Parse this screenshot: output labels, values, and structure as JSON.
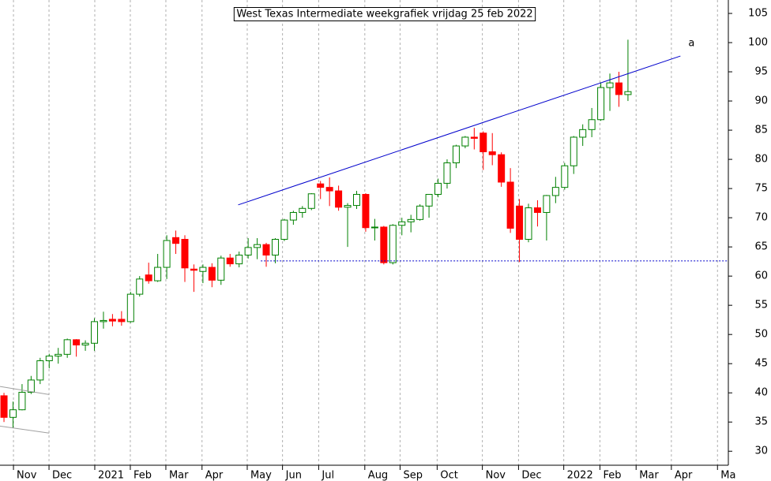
{
  "chart_data": {
    "type": "candlestick",
    "title": "West Texas Intermediate weekgrafiek vrijdag 25 feb 2022",
    "xlim": [
      -0.44,
      80.1
    ],
    "ylim": [
      27.6,
      107.3
    ],
    "yticks": [
      30,
      35,
      40,
      45,
      50,
      55,
      60,
      65,
      70,
      75,
      80,
      85,
      90,
      95,
      100,
      105
    ],
    "xticks": [
      {
        "value": 1.05,
        "label": "Nov"
      },
      {
        "value": 4.98,
        "label": "Dec"
      },
      {
        "value": 10.04,
        "label": "2021"
      },
      {
        "value": 13.97,
        "label": "Feb"
      },
      {
        "value": 17.9,
        "label": "Mar"
      },
      {
        "value": 21.9,
        "label": "Apr"
      },
      {
        "value": 26.9,
        "label": "May"
      },
      {
        "value": 30.8,
        "label": "Jun"
      },
      {
        "value": 34.8,
        "label": "Jul"
      },
      {
        "value": 39.9,
        "label": "Aug"
      },
      {
        "value": 43.8,
        "label": "Sep"
      },
      {
        "value": 47.9,
        "label": "Oct"
      },
      {
        "value": 52.9,
        "label": "Nov"
      },
      {
        "value": 56.9,
        "label": "Dec"
      },
      {
        "value": 61.9,
        "label": "2022"
      },
      {
        "value": 65.9,
        "label": "Feb"
      },
      {
        "value": 69.9,
        "label": "Mar"
      },
      {
        "value": 73.8,
        "label": "Apr"
      },
      {
        "value": 78.9,
        "label": "Ma"
      }
    ],
    "grid": true,
    "up_color": "#008000",
    "down_color": "#ff0000",
    "open": [
      39.5,
      35.8,
      37.1,
      40.1,
      42.2,
      45.5,
      46.3,
      46.6,
      49.1,
      48.2,
      48.5,
      52.2,
      52.6,
      52.6,
      52.2,
      56.9,
      60.2,
      59.2,
      61.5,
      66.6,
      66.3,
      61.2,
      60.8,
      61.5,
      59.3,
      63.1,
      62.1,
      63.6,
      64.9,
      65.4,
      63.6,
      66.3,
      69.6,
      70.9,
      71.6,
      75.8,
      75.2,
      74.6,
      71.8,
      72.1,
      74.0,
      68.3,
      68.4,
      62.3,
      68.7,
      69.3,
      69.7,
      72.0,
      74.0,
      75.9,
      79.4,
      82.3,
      83.8,
      84.5,
      81.3,
      80.8,
      76.1,
      72.0,
      66.3,
      71.7,
      70.9,
      73.8,
      75.2,
      78.9,
      83.8,
      85.1,
      86.8,
      92.3,
      93.1,
      91.1
    ],
    "high": [
      40.0,
      38.5,
      41.5,
      42.9,
      46.0,
      46.7,
      47.7,
      49.3,
      49.2,
      49.0,
      52.8,
      53.9,
      53.5,
      54.0,
      57.3,
      60.0,
      62.3,
      63.8,
      67.0,
      67.8,
      67.0,
      62.0,
      62.0,
      62.2,
      63.5,
      63.8,
      64.2,
      66.5,
      66.5,
      65.7,
      66.5,
      69.8,
      71.2,
      72.0,
      74.2,
      76.3,
      76.9,
      75.5,
      72.5,
      74.6,
      74.2,
      69.8,
      68.6,
      68.9,
      70.0,
      70.5,
      72.3,
      74.0,
      76.7,
      80.0,
      82.5,
      84.0,
      85.4,
      84.8,
      84.5,
      81.2,
      78.5,
      73.2,
      72.4,
      73.0,
      73.9,
      77.0,
      79.4,
      84.0,
      86.0,
      88.8,
      93.2,
      94.7,
      95.0,
      100.5
    ],
    "low": [
      35.0,
      34.0,
      37.0,
      39.8,
      41.5,
      44.2,
      45.0,
      46.0,
      46.2,
      47.2,
      47.2,
      51.0,
      51.4,
      51.5,
      52.0,
      56.5,
      58.7,
      59.0,
      59.5,
      63.8,
      59.0,
      57.3,
      58.8,
      58.1,
      58.5,
      61.6,
      61.5,
      63.0,
      62.9,
      61.6,
      62.2,
      66.0,
      68.8,
      70.0,
      71.3,
      73.2,
      72.0,
      71.2,
      65.0,
      71.5,
      67.6,
      66.1,
      62.0,
      62.0,
      67.0,
      67.5,
      69.5,
      70.0,
      73.5,
      75.0,
      78.5,
      81.9,
      81.7,
      78.2,
      79.0,
      75.3,
      67.4,
      62.4,
      65.8,
      68.5,
      66.1,
      72.5,
      74.8,
      77.5,
      82.3,
      83.8,
      86.6,
      88.3,
      89.0,
      90.0
    ],
    "close": [
      35.8,
      37.1,
      40.1,
      42.2,
      45.5,
      46.3,
      46.6,
      49.1,
      48.2,
      48.5,
      52.2,
      52.4,
      52.3,
      52.2,
      56.9,
      59.5,
      59.2,
      61.5,
      66.1,
      65.6,
      61.4,
      61.0,
      61.5,
      59.3,
      63.1,
      62.1,
      63.6,
      64.9,
      65.4,
      63.6,
      66.3,
      69.6,
      70.9,
      71.6,
      74.1,
      75.2,
      74.6,
      71.8,
      72.1,
      74.0,
      68.3,
      68.4,
      62.3,
      68.7,
      69.3,
      69.7,
      72.0,
      74.0,
      75.9,
      79.4,
      82.3,
      83.8,
      83.6,
      81.3,
      80.8,
      76.1,
      68.2,
      66.3,
      71.7,
      70.9,
      73.8,
      75.2,
      78.9,
      83.8,
      85.1,
      86.8,
      92.3,
      93.1,
      91.1,
      91.6
    ],
    "annotations": [
      {
        "label": "a",
        "color": "#0000cc",
        "x1": 25.9,
        "y1": 72.2,
        "x2": 74.8,
        "y2": 97.7
      },
      {
        "color": "#0000cc",
        "style": "dotted",
        "x1": 28.4,
        "y1": 62.6,
        "x2": 80.1,
        "y2": 62.6
      },
      {
        "color": "#a0a0a0",
        "x1": -0.44,
        "y1": 41.1,
        "x2": 5.0,
        "y2": 39.7
      },
      {
        "color": "#a0a0a0",
        "x1": -0.44,
        "y1": 34.3,
        "x2": 5.0,
        "y2": 33.1
      }
    ]
  }
}
